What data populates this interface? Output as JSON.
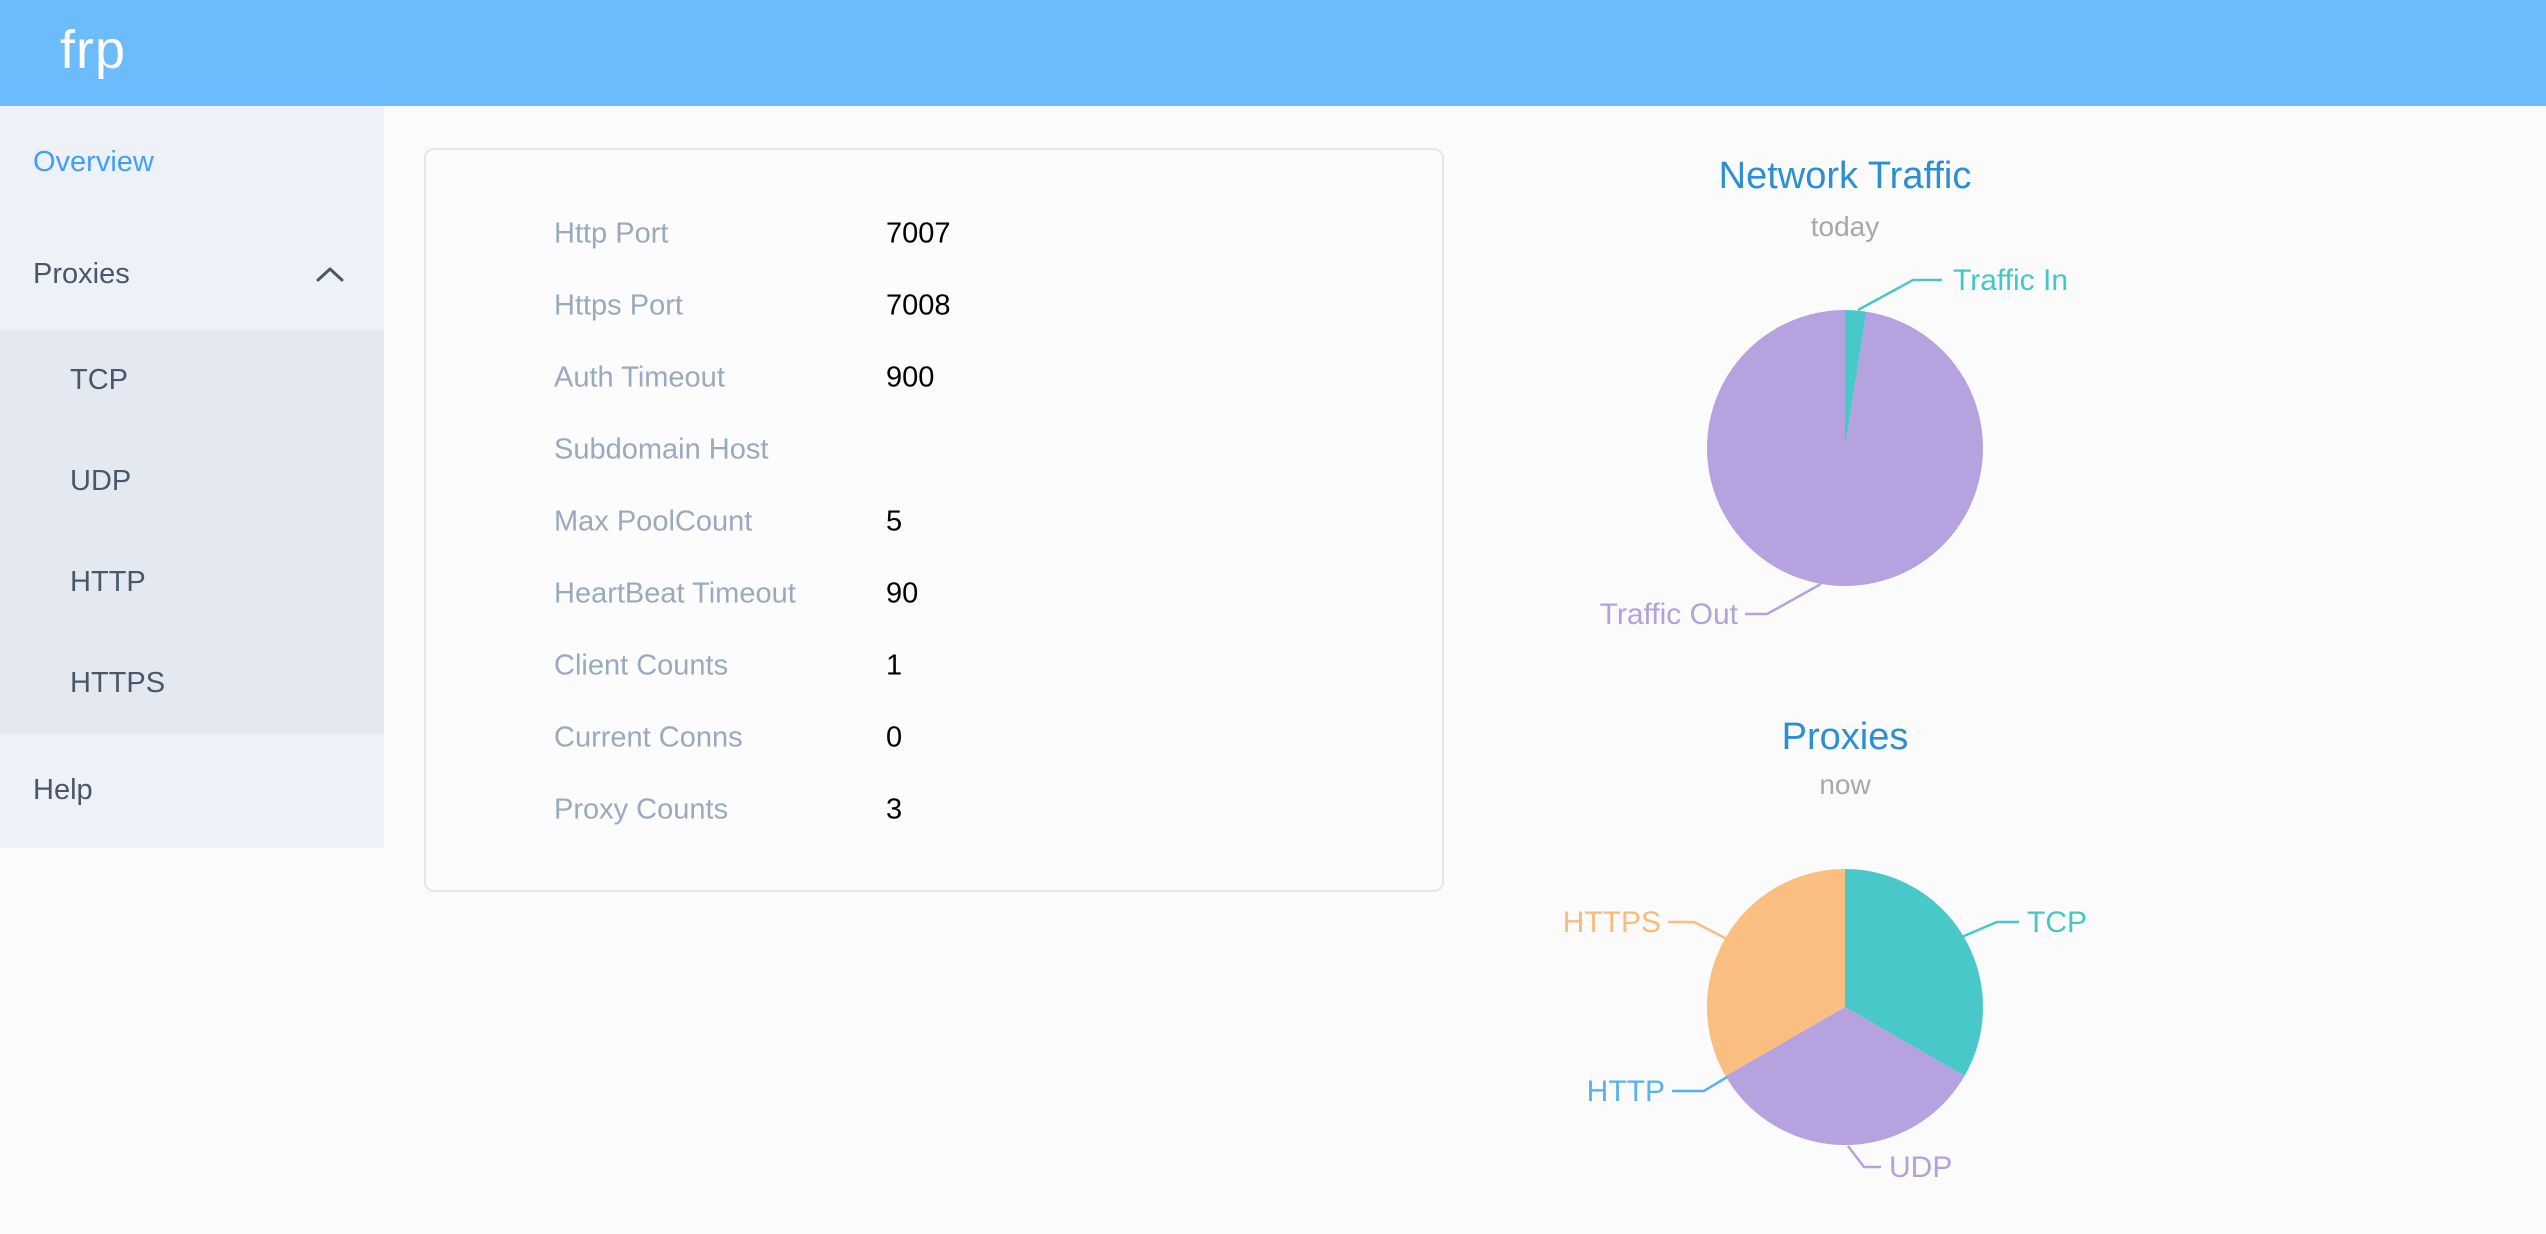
{
  "theme": {
    "header_bg": "#6cbcfc",
    "sidebar_bg": "#eef1f7",
    "submenu_bg": "#e4e8f1",
    "active_link_color": "#409eff",
    "menu_text_color": "#48576a",
    "chart_title_color": "#2d8fd3",
    "label_color": "#99a9bf"
  },
  "header": {
    "logo": "frp"
  },
  "sidebar": {
    "items": [
      {
        "label": "Overview",
        "active": true
      },
      {
        "label": "Proxies",
        "expanded": true
      },
      {
        "label": "TCP"
      },
      {
        "label": "UDP"
      },
      {
        "label": "HTTP"
      },
      {
        "label": "HTTPS"
      },
      {
        "label": "Help"
      }
    ]
  },
  "server_info": {
    "rows": [
      {
        "label": "Http Port",
        "value": "7007"
      },
      {
        "label": "Https Port",
        "value": "7008"
      },
      {
        "label": "Auth Timeout",
        "value": "900"
      },
      {
        "label": "Subdomain Host",
        "value": ""
      },
      {
        "label": "Max PoolCount",
        "value": "5"
      },
      {
        "label": "HeartBeat Timeout",
        "value": "90"
      },
      {
        "label": "Client Counts",
        "value": "1"
      },
      {
        "label": "Current Conns",
        "value": "0"
      },
      {
        "label": "Proxy Counts",
        "value": "3"
      }
    ]
  },
  "chart_data": [
    {
      "type": "pie",
      "title": "Network Traffic",
      "subtitle": "today",
      "values_are": "percent of pie, estimated from slice angles",
      "legend_position": "none",
      "label_position": "outside",
      "series": [
        {
          "name": "Traffic In",
          "value": 2.5,
          "color": "#48c8c9"
        },
        {
          "name": "Traffic Out",
          "value": 97.5,
          "color": "#b6a2de"
        }
      ]
    },
    {
      "type": "pie",
      "title": "Proxies",
      "subtitle": "now",
      "values_are": "proxy counts (total equals Proxy Counts = 3)",
      "legend_position": "none",
      "label_position": "outside",
      "series": [
        {
          "name": "TCP",
          "value": 1,
          "color": "#48c8c9"
        },
        {
          "name": "UDP",
          "value": 1,
          "color": "#b6a2de"
        },
        {
          "name": "HTTP",
          "value": 0,
          "color": "#5ab1ef"
        },
        {
          "name": "HTTPS",
          "value": 1,
          "color": "#fabe81"
        }
      ]
    }
  ]
}
